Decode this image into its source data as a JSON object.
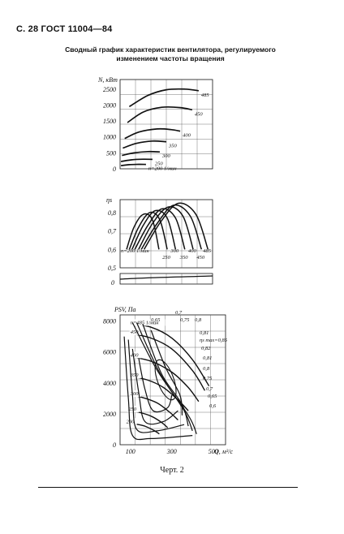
{
  "header": "С. 28 ГОСТ 11004—84",
  "title": "Сводный график характеристик вентилятора, регулируемого изменением частоты вращения",
  "caption": "Черт. 2",
  "colors": {
    "ink": "#111111",
    "background": "#ffffff"
  },
  "chart_data": [
    {
      "type": "line",
      "ylabel": "N, кВт",
      "yticks": [
        "0",
        "500",
        "1000",
        "1500",
        "2000",
        "2500"
      ],
      "ylim": [
        0,
        2800
      ],
      "xlim": [
        0,
        1
      ],
      "grid": true,
      "series": [
        {
          "name": "485",
          "label": "485",
          "x": [
            0.1,
            0.3,
            0.5,
            0.7,
            0.85
          ],
          "y": [
            1950,
            2300,
            2480,
            2500,
            2450
          ]
        },
        {
          "name": "450",
          "label": "450",
          "x": [
            0.08,
            0.25,
            0.45,
            0.65,
            0.78
          ],
          "y": [
            1450,
            1780,
            1930,
            1920,
            1850
          ]
        },
        {
          "name": "400",
          "label": "400",
          "x": [
            0.05,
            0.2,
            0.4,
            0.55,
            0.65
          ],
          "y": [
            950,
            1150,
            1250,
            1230,
            1180
          ]
        },
        {
          "name": "350",
          "label": "350",
          "x": [
            0.03,
            0.18,
            0.35,
            0.5
          ],
          "y": [
            650,
            800,
            870,
            850
          ]
        },
        {
          "name": "300",
          "label": "300",
          "x": [
            0.02,
            0.15,
            0.3,
            0.43
          ],
          "y": [
            420,
            500,
            540,
            530
          ]
        },
        {
          "name": "250",
          "label": "250",
          "x": [
            0.01,
            0.12,
            0.25,
            0.35
          ],
          "y": [
            230,
            280,
            300,
            295
          ]
        },
        {
          "name": "200",
          "label": "n=200 1/мин",
          "x": [
            0.01,
            0.1,
            0.2,
            0.28
          ],
          "y": [
            100,
            130,
            140,
            138
          ]
        }
      ]
    },
    {
      "type": "line",
      "ylabel": "ηs",
      "yticks": [
        "0,5",
        "0,6",
        "0,7",
        "0,8"
      ],
      "ylim": [
        0.5,
        0.87
      ],
      "xlim": [
        0,
        1
      ],
      "grid": true,
      "series": [
        {
          "name": "200",
          "label": "n=200 1/мин",
          "x": [
            0.07,
            0.15,
            0.25,
            0.35,
            0.42
          ],
          "y": [
            0.6,
            0.72,
            0.79,
            0.76,
            0.6
          ]
        },
        {
          "name": "250",
          "label": "250",
          "x": [
            0.1,
            0.2,
            0.32,
            0.43,
            0.51
          ],
          "y": [
            0.6,
            0.72,
            0.8,
            0.76,
            0.6
          ]
        },
        {
          "name": "300",
          "label": "300",
          "x": [
            0.13,
            0.25,
            0.38,
            0.51,
            0.6
          ],
          "y": [
            0.6,
            0.73,
            0.81,
            0.77,
            0.6
          ]
        },
        {
          "name": "350",
          "label": "350",
          "x": [
            0.16,
            0.3,
            0.45,
            0.6,
            0.7
          ],
          "y": [
            0.6,
            0.73,
            0.82,
            0.77,
            0.6
          ]
        },
        {
          "name": "400",
          "label": "400",
          "x": [
            0.2,
            0.35,
            0.52,
            0.68,
            0.79
          ],
          "y": [
            0.6,
            0.74,
            0.83,
            0.78,
            0.6
          ]
        },
        {
          "name": "450",
          "label": "450",
          "x": [
            0.23,
            0.4,
            0.58,
            0.76,
            0.88
          ],
          "y": [
            0.6,
            0.74,
            0.84,
            0.78,
            0.6
          ]
        },
        {
          "name": "485",
          "label": "485",
          "x": [
            0.26,
            0.44,
            0.63,
            0.82,
            0.95
          ],
          "y": [
            0.6,
            0.75,
            0.85,
            0.79,
            0.6
          ]
        }
      ],
      "extra_tick": "0"
    },
    {
      "type": "line",
      "ylabel": "PSV, Па",
      "xlabel": "Q, м³/с",
      "yticks": [
        "0",
        "2000",
        "4000",
        "6000",
        "8000"
      ],
      "xticks": [
        "100",
        "300",
        "500"
      ],
      "xlim": [
        50,
        560
      ],
      "ylim": [
        0,
        8400
      ],
      "grid": true,
      "series": [
        {
          "name": "485",
          "label": "n=485 1/мин",
          "x": [
            100,
            200,
            300,
            400,
            480
          ],
          "y": [
            7800,
            7600,
            6900,
            5500,
            3800
          ]
        },
        {
          "name": "450",
          "label": "450",
          "x": [
            100,
            200,
            300,
            400,
            460
          ],
          "y": [
            7200,
            6900,
            6200,
            4800,
            3500
          ]
        },
        {
          "name": "400",
          "label": "400",
          "x": [
            100,
            200,
            300,
            380,
            430
          ],
          "y": [
            5700,
            5400,
            4700,
            3700,
            2800
          ]
        },
        {
          "name": "350",
          "label": "350",
          "x": [
            100,
            180,
            260,
            330,
            380
          ],
          "y": [
            4400,
            4200,
            3700,
            2900,
            2200
          ]
        },
        {
          "name": "300",
          "label": "300",
          "x": [
            100,
            160,
            230,
            290,
            330
          ],
          "y": [
            3200,
            3050,
            2700,
            2100,
            1600
          ]
        },
        {
          "name": "250",
          "label": "250",
          "x": [
            90,
            140,
            200,
            250,
            280
          ],
          "y": [
            2200,
            2100,
            1850,
            1450,
            1100
          ]
        },
        {
          "name": "200",
          "label": "200",
          "x": [
            80,
            120,
            170,
            210,
            240
          ],
          "y": [
            1400,
            1350,
            1200,
            950,
            700
          ]
        }
      ],
      "annotations": [
        "0,65",
        "0,7",
        "0,75",
        "0,8",
        "0,81",
        "ηs max=0,85",
        "0,82",
        "0,81",
        "0,8",
        "0,75",
        "0,7",
        "0,65",
        "0,6"
      ]
    }
  ]
}
